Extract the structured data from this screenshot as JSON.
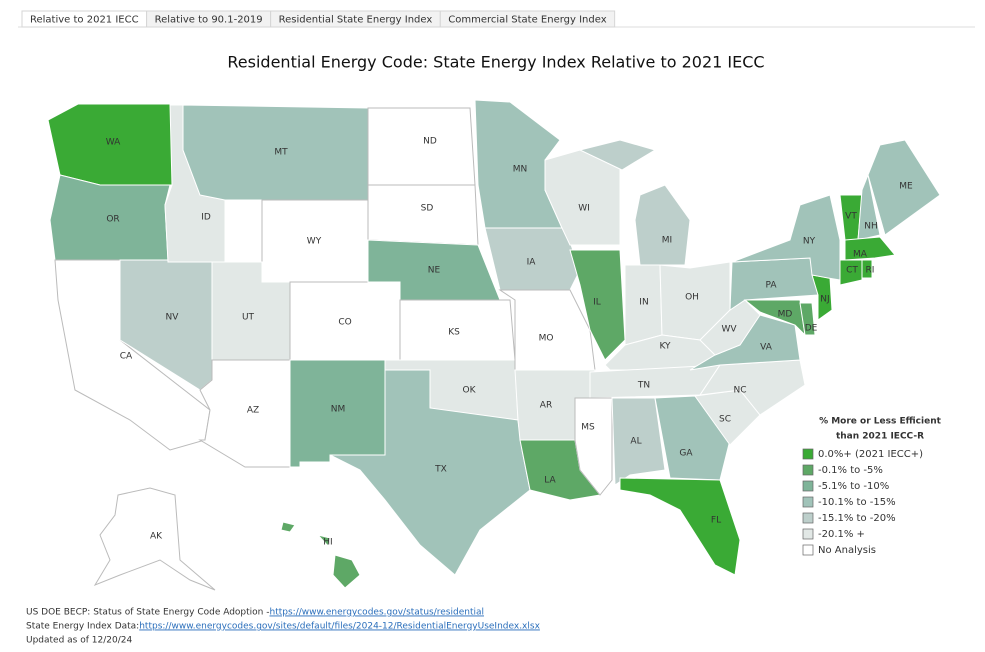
{
  "tabs": [
    "Relative to 2021 IECC",
    "Relative to 90.1-2019",
    "Residential State Energy Index",
    "Commercial State Energy Index"
  ],
  "title": "Residential Energy Code: State Energy Index Relative to 2021 IECC",
  "legend": {
    "title": [
      "% More or Less Efficient",
      "than 2021 IECC-R"
    ],
    "items": [
      {
        "label": "0.0%+ (2021 IECC+)",
        "color": "#3aaa35"
      },
      {
        "label": "-0.1% to -5%",
        "color": "#5ea866"
      },
      {
        "label": "-5.1% to -10%",
        "color": "#7fb499"
      },
      {
        "label": "-10.1% to -15%",
        "color": "#a1c3b9"
      },
      {
        "label": "-15.1% to -20%",
        "color": "#bdcfcb"
      },
      {
        "label": "-20.1% +",
        "color": "#e2e8e6"
      },
      {
        "label": "No Analysis",
        "color": "#ffffff"
      }
    ]
  },
  "states": [
    {
      "label": "WA",
      "color": "#3aaa35"
    },
    {
      "label": "OR",
      "color": "#7fb499"
    },
    {
      "label": "CA",
      "color": "#ffffff"
    },
    {
      "label": "NV",
      "color": "#bdcfcb"
    },
    {
      "label": "ID",
      "color": "#e2e8e6"
    },
    {
      "label": "MT",
      "color": "#a1c3b9"
    },
    {
      "label": "WY",
      "color": "#ffffff"
    },
    {
      "label": "UT",
      "color": "#e2e8e6"
    },
    {
      "label": "AZ",
      "color": "#ffffff"
    },
    {
      "label": "CO",
      "color": "#ffffff"
    },
    {
      "label": "NM",
      "color": "#7fb499"
    },
    {
      "label": "ND",
      "color": "#ffffff"
    },
    {
      "label": "SD",
      "color": "#ffffff"
    },
    {
      "label": "NE",
      "color": "#7fb499"
    },
    {
      "label": "KS",
      "color": "#ffffff"
    },
    {
      "label": "OK",
      "color": "#e2e8e6"
    },
    {
      "label": "TX",
      "color": "#a1c3b9"
    },
    {
      "label": "MN",
      "color": "#a1c3b9"
    },
    {
      "label": "IA",
      "color": "#bdcfcb"
    },
    {
      "label": "MO",
      "color": "#ffffff"
    },
    {
      "label": "AR",
      "color": "#e2e8e6"
    },
    {
      "label": "LA",
      "color": "#5ea866"
    },
    {
      "label": "WI",
      "color": "#e2e8e6"
    },
    {
      "label": "IL",
      "color": "#5ea866"
    },
    {
      "label": "MI",
      "color": "#bdcfcb"
    },
    {
      "label": "IN",
      "color": "#e2e8e6"
    },
    {
      "label": "OH",
      "color": "#e2e8e6"
    },
    {
      "label": "KY",
      "color": "#e2e8e6"
    },
    {
      "label": "TN",
      "color": "#e2e8e6"
    },
    {
      "label": "MS",
      "color": "#ffffff"
    },
    {
      "label": "AL",
      "color": "#bdcfcb"
    },
    {
      "label": "GA",
      "color": "#a1c3b9"
    },
    {
      "label": "FL",
      "color": "#3aaa35"
    },
    {
      "label": "SC",
      "color": "#e2e8e6"
    },
    {
      "label": "NC",
      "color": "#e2e8e6"
    },
    {
      "label": "VA",
      "color": "#a1c3b9"
    },
    {
      "label": "WV",
      "color": "#e2e8e6"
    },
    {
      "label": "PA",
      "color": "#a1c3b9"
    },
    {
      "label": "MD",
      "color": "#5ea866"
    },
    {
      "label": "DE",
      "color": "#5ea866"
    },
    {
      "label": "NJ",
      "color": "#3aaa35"
    },
    {
      "label": "NY",
      "color": "#a1c3b9"
    },
    {
      "label": "VT",
      "color": "#3aaa35"
    },
    {
      "label": "NH",
      "color": "#a1c3b9"
    },
    {
      "label": "ME",
      "color": "#a1c3b9"
    },
    {
      "label": "MA",
      "color": "#3aaa35"
    },
    {
      "label": "CT",
      "color": "#3aaa35"
    },
    {
      "label": "RI",
      "color": "#3aaa35"
    },
    {
      "label": "AK",
      "color": "#ffffff"
    },
    {
      "label": "HI",
      "color": "#5ea866"
    }
  ],
  "footer": [
    {
      "text": "US DOE BECP: Status of State Energy Code Adoption - ",
      "link": "https://www.energycodes.gov/status/residential"
    },
    {
      "text": "State Energy Index Data: ",
      "link": "https://www.energycodes.gov/sites/default/files/2024-12/ResidentialEnergyUseIndex.xlsx"
    },
    {
      "text": "Updated as of 12/20/24"
    }
  ]
}
